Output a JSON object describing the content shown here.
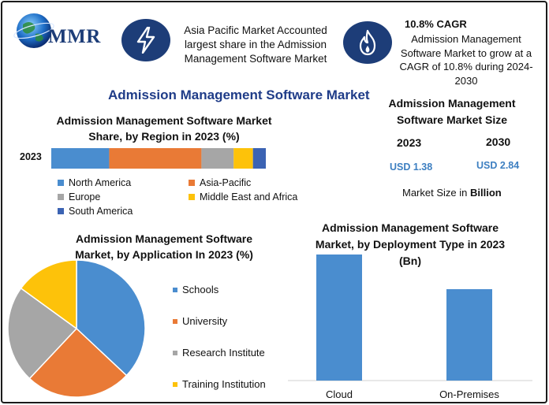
{
  "colors": {
    "blue": "#4a8dcf",
    "orange": "#e97a36",
    "gray": "#a6a6a6",
    "yellow": "#fdc20a",
    "darkblue": "#3b63b3",
    "bar": "#4a8dcf",
    "navy": "#1d3d78"
  },
  "logo": {
    "text": "MMR",
    "icon": "globe-icon"
  },
  "highlight_1": {
    "icon": "lightning-icon",
    "text": "Asia Pacific Market Accounted largest share in the Admission Management Software Market"
  },
  "highlight_2": {
    "icon": "flame-icon",
    "heading": "10.8% CAGR",
    "text": "Admission Management Software Market to grow at a CAGR of 10.8% during 2024-2030"
  },
  "main_title": "Admission Management Software Market",
  "market_size": {
    "title": "Admission Management Software Market Size",
    "year_1": "2023",
    "year_2": "2030",
    "value_1": "USD 1.38",
    "value_2": "USD 2.84",
    "note_prefix": "Market Size in ",
    "note_unit": "Billion"
  },
  "chart_data": [
    {
      "type": "bar",
      "title": "Admission Management Software Market Share, by Region in 2023 (%)",
      "orientation": "horizontal-stacked",
      "categories": [
        "2023"
      ],
      "series": [
        {
          "name": "North America",
          "values": [
            27
          ],
          "color": "#4a8dcf"
        },
        {
          "name": "Asia-Pacific",
          "values": [
            43
          ],
          "color": "#e97a36"
        },
        {
          "name": "Europe",
          "values": [
            15
          ],
          "color": "#a6a6a6"
        },
        {
          "name": "Middle East and Africa",
          "values": [
            9
          ],
          "color": "#fdc20a"
        },
        {
          "name": "South America",
          "values": [
            6
          ],
          "color": "#3b63b3"
        }
      ],
      "legend": "bottom"
    },
    {
      "type": "pie",
      "title": "Admission Management Software Market, by Application In 2023 (%)",
      "labels": [
        "Schools",
        "University",
        "Research Institute",
        "Training Institution"
      ],
      "values": [
        37,
        25,
        23,
        15
      ],
      "colors": [
        "#4a8dcf",
        "#e97a36",
        "#a6a6a6",
        "#fdc20a"
      ],
      "legend": "right"
    },
    {
      "type": "bar",
      "title": "Admission Management Software Market, by Deployment Type in 2023 (Bn)",
      "categories": [
        "Cloud",
        "On-Premises"
      ],
      "values": [
        0.8,
        0.58
      ],
      "ylim": [
        0,
        0.85
      ],
      "color": "#4a8dcf"
    }
  ]
}
